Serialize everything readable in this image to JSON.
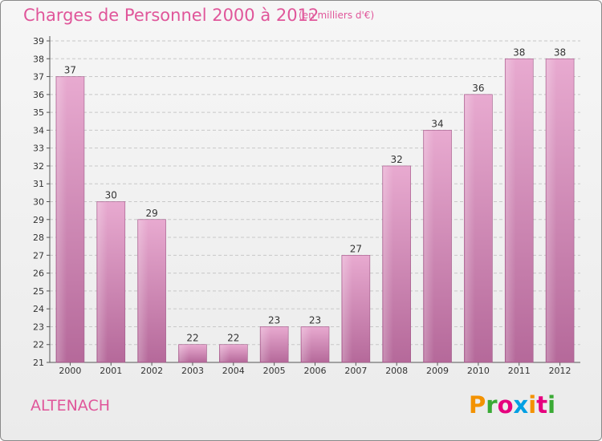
{
  "header": {
    "title": "Charges de Personnel 2000 à 2012",
    "subtitle": "(en milliers d'€)"
  },
  "footer": {
    "commune": "ALTENACH",
    "logo_text": "Proxiti",
    "logo_colors": [
      "#f39200",
      "#3aaa35",
      "#e6007e",
      "#009fe3",
      "#f39200",
      "#e6007e",
      "#3aaa35"
    ]
  },
  "colors": {
    "bar": "#d889b8",
    "bar_light": "#e6a9cd",
    "bar_dark": "#b8679a",
    "title": "#e0569a",
    "grid": "#c8c8c8",
    "text": "#333333"
  },
  "chart_data": {
    "type": "bar",
    "title": "Charges de Personnel 2000 à 2012",
    "subtitle": "(en milliers d'€)",
    "categories": [
      "2000",
      "2001",
      "2002",
      "2003",
      "2004",
      "2005",
      "2006",
      "2007",
      "2008",
      "2009",
      "2010",
      "2011",
      "2012"
    ],
    "values": [
      37,
      30,
      29,
      22,
      22,
      23,
      23,
      27,
      32,
      34,
      36,
      38,
      38
    ],
    "data_labels": [
      "37",
      "30",
      "29",
      "22",
      "22",
      "23",
      "23",
      "27",
      "32",
      "34",
      "36",
      "38",
      "38"
    ],
    "ylim": [
      21,
      39
    ],
    "yticks": [
      "21",
      "22",
      "23",
      "24",
      "25",
      "26",
      "27",
      "28",
      "29",
      "30",
      "31",
      "32",
      "33",
      "34",
      "35",
      "36",
      "37",
      "38",
      "39"
    ],
    "grid": true,
    "legend": false,
    "xlabel": "",
    "ylabel": ""
  }
}
